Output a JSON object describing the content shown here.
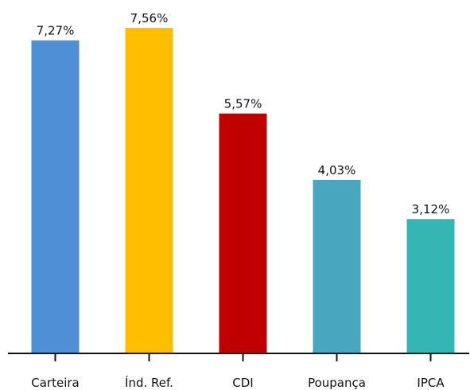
{
  "chart_data": {
    "type": "bar",
    "categories": [
      "Carteira",
      "Índ. Ref.",
      "CDI",
      "Poupança",
      "IPCA"
    ],
    "values": [
      7.27,
      7.56,
      5.57,
      4.03,
      3.12
    ],
    "value_labels": [
      "7,27%",
      "7,56%",
      "5,57%",
      "4,03%",
      "3,12%"
    ],
    "colors": [
      "#4f8fd6",
      "#ffbf00",
      "#c00000",
      "#48a7bf",
      "#36b5b5"
    ],
    "title": "",
    "xlabel": "",
    "ylabel": "",
    "ylim": [
      0,
      7.56
    ],
    "grid": false,
    "legend": "none"
  }
}
